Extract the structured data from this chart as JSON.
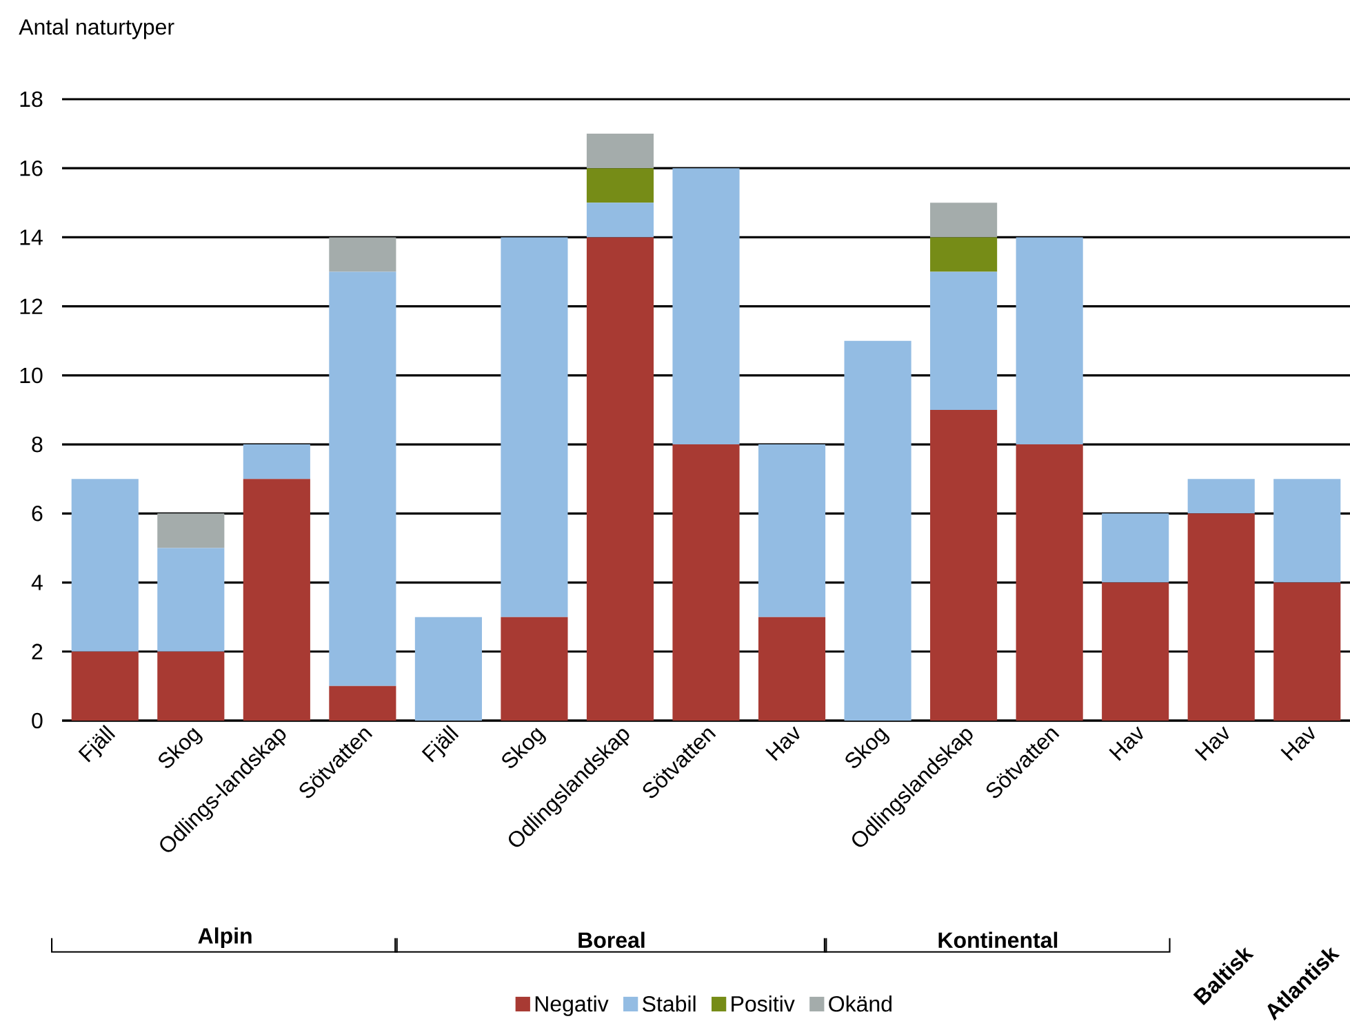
{
  "chart_data": {
    "type": "bar",
    "stacked": true,
    "ylabel": "Antal naturtyper",
    "categories": [
      "Fjäll",
      "Skog",
      "Odlings-landskap",
      "Sötvatten",
      "Fjäll",
      "Skog",
      "Odlingslandskap",
      "Sötvatten",
      "Hav",
      "Skog",
      "Odlingslandskap",
      "Sötvatten",
      "Hav",
      "Hav",
      "Hav"
    ],
    "series": [
      {
        "name": "Negativ",
        "color": "#a83a33",
        "values": [
          2,
          2,
          7,
          1,
          0,
          3,
          14,
          8,
          3,
          0,
          9,
          8,
          4,
          6,
          4
        ]
      },
      {
        "name": "Stabil",
        "color": "#93bce3",
        "values": [
          5,
          3,
          1,
          12,
          3,
          11,
          1,
          8,
          5,
          11,
          4,
          6,
          2,
          1,
          3
        ]
      },
      {
        "name": "Positiv",
        "color": "#768c17",
        "values": [
          0,
          0,
          0,
          0,
          0,
          0,
          1,
          0,
          0,
          0,
          1,
          0,
          0,
          0,
          0
        ]
      },
      {
        "name": "Okänd",
        "color": "#a4acab",
        "values": [
          0,
          1,
          0,
          1,
          0,
          0,
          1,
          0,
          0,
          0,
          1,
          0,
          0,
          0,
          0
        ]
      }
    ],
    "annotations": [
      "Alpin",
      "Boreal",
      "Kontinental",
      "Baltisk",
      "Atlantisk"
    ],
    "ylim": [
      0,
      18
    ],
    "yticks": [
      0,
      2,
      4,
      6,
      8,
      10,
      12,
      14,
      16,
      18
    ],
    "grid": "y",
    "legend": "bottom"
  }
}
